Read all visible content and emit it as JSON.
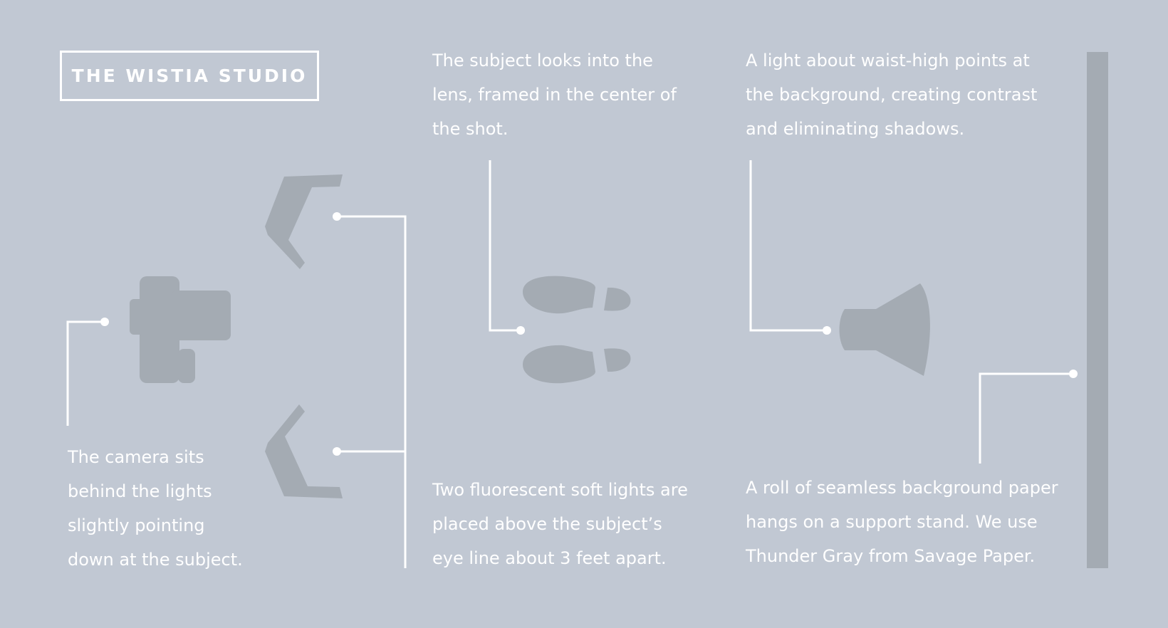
{
  "title": "THE WISTIA STUDIO",
  "colors": {
    "background": "#c1c8d3",
    "icon": "#a4abb3",
    "line": "#ffffff",
    "text": "#ffffff"
  },
  "icons": [
    "camera-icon",
    "soft-light-icon",
    "footprints-icon",
    "spotlight-icon",
    "background-paper-icon"
  ],
  "notes": {
    "camera": {
      "lines": [
        "The camera sits",
        "behind the lights",
        "slightly pointing",
        "down at the subject."
      ]
    },
    "subject": {
      "lines": [
        "The subject looks into the",
        "lens, framed in the center of",
        "the shot."
      ]
    },
    "back_light": {
      "lines": [
        "A light about waist-high points at",
        "the background, creating contrast",
        "and eliminating shadows."
      ]
    },
    "soft_lights": {
      "lines": [
        "Two fluorescent soft lights are",
        "placed above the subject’s",
        "eye line about 3 feet apart."
      ]
    },
    "paper": {
      "lines": [
        "A roll of seamless background paper",
        "hangs on a support stand. We use",
        "Thunder Gray from Savage Paper."
      ]
    }
  }
}
